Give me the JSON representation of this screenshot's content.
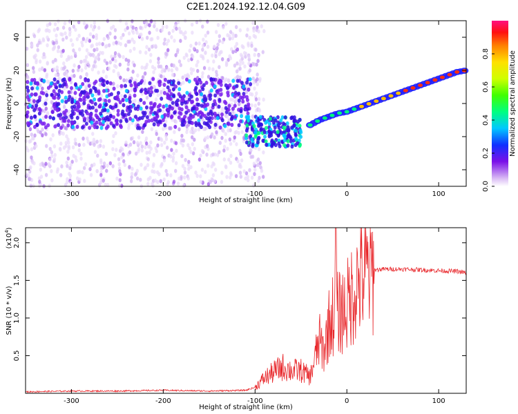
{
  "title": "C2E1.2024.192.12.04.G09",
  "chart_data": [
    {
      "type": "heatmap",
      "xlabel": "Height of straight line (km)",
      "ylabel": "Frequency (Hz)",
      "xlim": [
        -350,
        130
      ],
      "ylim": [
        -50,
        50
      ],
      "xticks": [
        -300,
        -200,
        -100,
        0,
        100
      ],
      "xtick_labels": [
        "-300",
        "-200",
        "-100",
        "0",
        "100"
      ],
      "yticks": [
        -40,
        -20,
        0,
        20,
        40
      ],
      "ytick_labels": [
        "-40",
        "-20",
        "0",
        "20",
        "40"
      ],
      "colorbar": {
        "label": "Normalized spectral amplitude",
        "range": [
          0,
          1
        ],
        "ticks": [
          0,
          0.2,
          0.4,
          0.6,
          0.8
        ],
        "tick_labels": [
          "0.0",
          "0.2",
          "0.4",
          "0.6",
          "0.8"
        ]
      },
      "ridge": {
        "x": [
          -350,
          -300,
          -250,
          -200,
          -150,
          -110,
          -100,
          -90,
          -80,
          -70,
          -60,
          -50,
          -40,
          -30,
          -20,
          -10,
          0,
          20,
          40,
          60,
          80,
          100,
          120,
          130
        ],
        "y": [
          0,
          0,
          0,
          0,
          0,
          -1,
          -15,
          -17,
          -18,
          -16,
          -15,
          -14,
          -13,
          -10,
          -8,
          -6,
          -5,
          -1,
          3,
          7,
          11,
          15,
          19,
          20
        ]
      },
      "grid": false
    },
    {
      "type": "line",
      "xlabel": "Height of straight line (km)",
      "ylabel": "SNR (10 * v/v)",
      "y_multiplier_label": "(x10",
      "y_multiplier_exp": "4",
      "y_multiplier_close": ")",
      "xlim": [
        -350,
        130
      ],
      "ylim": [
        0,
        2.2
      ],
      "xticks": [
        -300,
        -200,
        -100,
        0,
        100
      ],
      "xtick_labels": [
        "-300",
        "-200",
        "-100",
        "0",
        "100"
      ],
      "yticks": [
        0.5,
        1.0,
        1.5,
        2.0
      ],
      "ytick_labels": [
        "0.5",
        "1.0",
        "1.5",
        "2.0"
      ],
      "series": [
        {
          "color": "#e8262a",
          "x": [
            -350,
            -300,
            -250,
            -200,
            -150,
            -110,
            -100,
            -90,
            -80,
            -70,
            -60,
            -50,
            -40,
            -35,
            -30,
            -25,
            -20,
            -15,
            -10,
            -5,
            0,
            5,
            10,
            20,
            30,
            40,
            60,
            80,
            100,
            120,
            130
          ],
          "y": [
            0.02,
            0.03,
            0.03,
            0.04,
            0.03,
            0.04,
            0.08,
            0.2,
            0.28,
            0.35,
            0.3,
            0.3,
            0.22,
            0.45,
            0.7,
            0.55,
            0.9,
            1.05,
            1.05,
            1.1,
            1.15,
            1.3,
            1.45,
            1.58,
            1.64,
            1.65,
            1.65,
            1.64,
            1.63,
            1.62,
            1.6
          ]
        }
      ],
      "grid": false
    }
  ]
}
